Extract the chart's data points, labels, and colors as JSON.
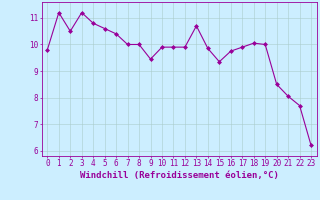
{
  "x": [
    0,
    1,
    2,
    3,
    4,
    5,
    6,
    7,
    8,
    9,
    10,
    11,
    12,
    13,
    14,
    15,
    16,
    17,
    18,
    19,
    20,
    21,
    22,
    23
  ],
  "y": [
    9.8,
    11.2,
    10.5,
    11.2,
    10.8,
    10.6,
    10.4,
    10.0,
    10.0,
    9.45,
    9.9,
    9.9,
    9.9,
    10.7,
    9.85,
    9.35,
    9.75,
    9.9,
    10.05,
    10.0,
    8.5,
    8.05,
    7.7,
    6.2
  ],
  "line_color": "#990099",
  "marker": "D",
  "marker_size": 2.0,
  "bg_color": "#cceeff",
  "grid_color": "#aacccc",
  "xlabel": "Windchill (Refroidissement éolien,°C)",
  "xlabel_color": "#990099",
  "ylim": [
    5.8,
    11.6
  ],
  "xlim": [
    -0.5,
    23.5
  ],
  "yticks": [
    6,
    7,
    8,
    9,
    10,
    11
  ],
  "xticks": [
    0,
    1,
    2,
    3,
    4,
    5,
    6,
    7,
    8,
    9,
    10,
    11,
    12,
    13,
    14,
    15,
    16,
    17,
    18,
    19,
    20,
    21,
    22,
    23
  ],
  "tick_color": "#990099",
  "tick_label_fontsize": 5.5,
  "xlabel_fontsize": 6.5
}
